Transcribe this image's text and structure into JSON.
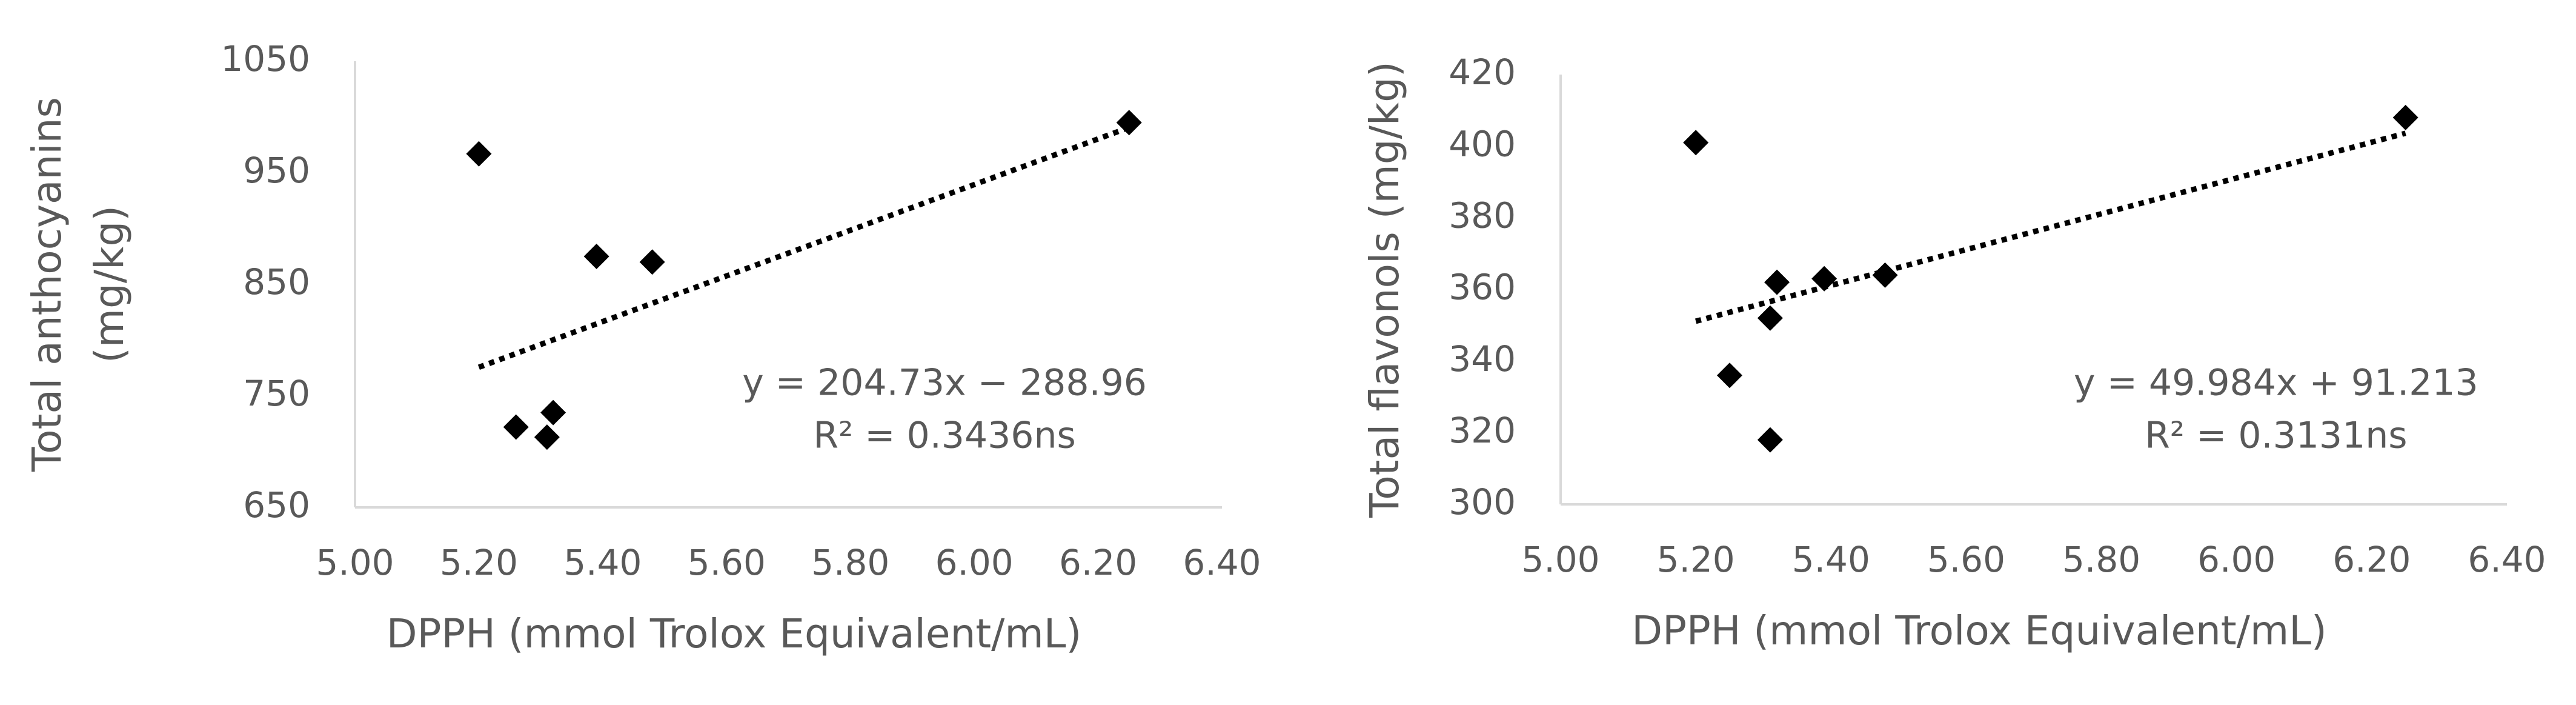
{
  "chart_data": [
    {
      "type": "scatter",
      "ylabel": [
        "Total anthocyanins",
        "(mg/kg)"
      ],
      "xlabel": "DPPH (mmol Trolox Equivalent/mL)",
      "x": [
        5.2,
        5.26,
        5.31,
        5.32,
        5.39,
        5.48,
        6.25
      ],
      "values": [
        967,
        722,
        713,
        735,
        875,
        870,
        995
      ],
      "color": "#000000",
      "xlim": [
        5.0,
        6.4
      ],
      "xticks": [
        {
          "value": 5.0,
          "label": "5.00"
        },
        {
          "value": 5.2,
          "label": "5.20"
        },
        {
          "value": 5.4,
          "label": "5.40"
        },
        {
          "value": 5.6,
          "label": "5.60"
        },
        {
          "value": 5.8,
          "label": "5.80"
        },
        {
          "value": 6.0,
          "label": "6.00"
        },
        {
          "value": 6.2,
          "label": "6.20"
        },
        {
          "value": 6.4,
          "label": "6.40"
        }
      ],
      "ylim": [
        650,
        1050
      ],
      "yticks": [
        650,
        750,
        850,
        950,
        1050
      ],
      "trendline": {
        "slope": 204.73,
        "intercept": -288.96
      },
      "annotations": [
        "y = 204.73x − 288.96",
        "R² = 0.3436ns"
      ]
    },
    {
      "type": "scatter",
      "ylabel": [
        "Total flavonols (mg/kg)"
      ],
      "xlabel": "DPPH (mmol Trolox Equivalent/mL)",
      "x": [
        5.2,
        5.25,
        5.31,
        5.31,
        5.32,
        5.39,
        5.48,
        6.25
      ],
      "values": [
        401,
        336,
        318,
        352,
        362,
        363,
        364,
        408
      ],
      "color": "#000000",
      "xlim": [
        5.0,
        6.4
      ],
      "xticks": [
        {
          "value": 5.0,
          "label": "5.00"
        },
        {
          "value": 5.2,
          "label": "5.20"
        },
        {
          "value": 5.4,
          "label": "5.40"
        },
        {
          "value": 5.6,
          "label": "5.60"
        },
        {
          "value": 5.8,
          "label": "5.80"
        },
        {
          "value": 6.0,
          "label": "6.00"
        },
        {
          "value": 6.2,
          "label": "6.20"
        },
        {
          "value": 6.4,
          "label": "6.40"
        }
      ],
      "ylim": [
        300,
        420
      ],
      "yticks": [
        300,
        320,
        340,
        360,
        380,
        400,
        420
      ],
      "trendline": {
        "slope": 49.984,
        "intercept": 91.213
      },
      "annotations": [
        "y = 49.984x + 91.213",
        "R² = 0.3131ns"
      ]
    }
  ]
}
